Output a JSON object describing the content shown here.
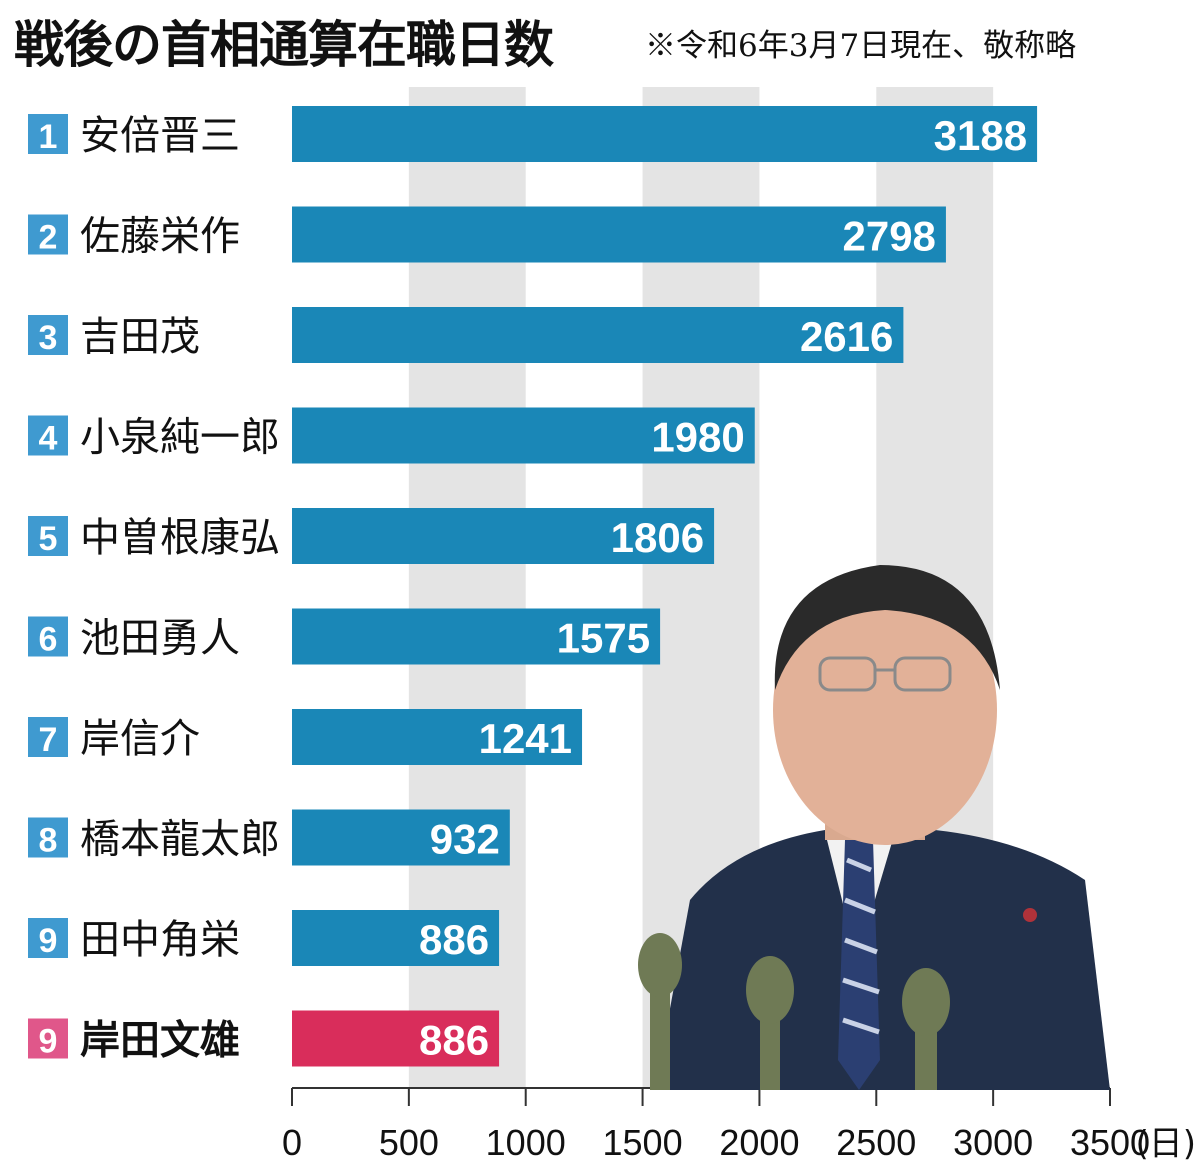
{
  "header": {
    "title": "戦後の首相通算在職日数",
    "note": "※令和6年3月7日現在、敬称略"
  },
  "colors": {
    "bar": "#1a87b7",
    "highlight_bar": "#d92d5b",
    "rank_badge": "#3f9ad0",
    "highlight_badge": "#e0578a",
    "grid_stripe": "#e4e4e4",
    "label_text": "#111111",
    "value_text": "#ffffff"
  },
  "photo": {
    "description_icon": "person-photo-icon"
  },
  "chart_data": {
    "type": "bar",
    "orientation": "horizontal",
    "title": "戦後の首相通算在職日数",
    "subtitle": "※令和6年3月7日現在、敬称略",
    "xlabel": "",
    "x_unit": "(日)",
    "xlim": [
      0,
      3500
    ],
    "xticks": [
      "0",
      "500",
      "1000",
      "1500",
      "2000",
      "2500",
      "3000",
      "3500"
    ],
    "grid": "alternating vertical stripes",
    "categories": [
      "安倍晋三",
      "佐藤栄作",
      "吉田茂",
      "小泉純一郎",
      "中曽根康弘",
      "池田勇人",
      "岸信介",
      "橋本龍太郎",
      "田中角栄",
      "岸田文雄"
    ],
    "ranks": [
      "1",
      "2",
      "3",
      "4",
      "5",
      "6",
      "7",
      "8",
      "9",
      "9"
    ],
    "values": [
      3188,
      2798,
      2616,
      1980,
      1806,
      1575,
      1241,
      932,
      886,
      886
    ],
    "value_labels": [
      "3188",
      "2798",
      "2616",
      "1980",
      "1806",
      "1575",
      "1241",
      "932",
      "886",
      "886"
    ],
    "highlight": [
      false,
      false,
      false,
      false,
      false,
      false,
      false,
      false,
      false,
      true
    ]
  }
}
